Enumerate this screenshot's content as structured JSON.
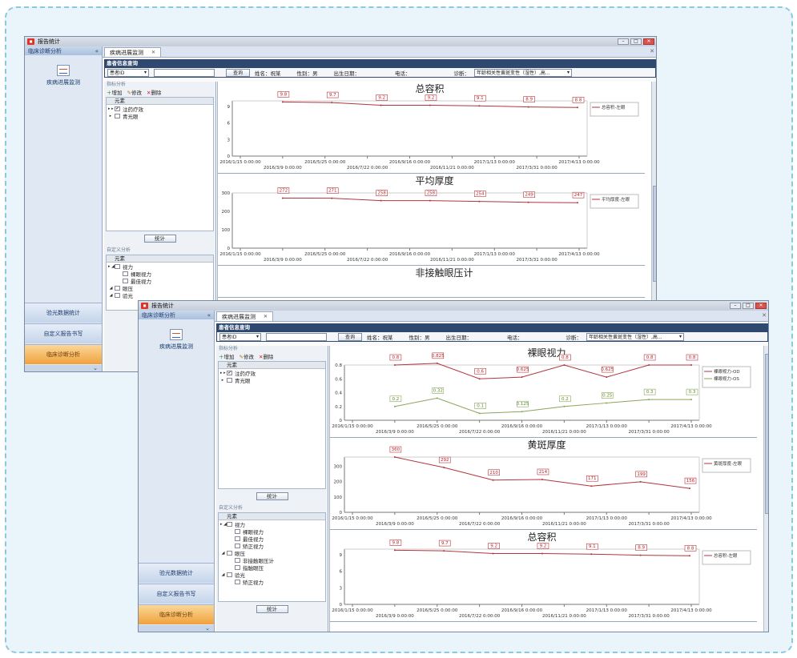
{
  "window": {
    "title": "报告统计",
    "minimize": "–",
    "maximize": "□",
    "close": "✕"
  },
  "nav": {
    "header": "临床诊断分析",
    "collapse": "«",
    "item": "疾病进展监测",
    "buttons": [
      "验光数据统计",
      "自定义报告书写",
      "临床诊断分析"
    ],
    "footer": "⌄"
  },
  "tab": {
    "label": "疾病进展监测",
    "close": "✕"
  },
  "patient": {
    "section_title": "患者信息查询",
    "id_select": "患者ID",
    "id_value": "",
    "query_button": "查询",
    "name": "姓名：祝某",
    "gender": "性别：男",
    "birth": "出生日期：",
    "phone": "电话：",
    "diagnosis_label": "诊断：",
    "diagnosis_value": "年龄相关性黄斑变性（湿性）,高..."
  },
  "left_panel": {
    "group_title": "指标分析",
    "toolbar": [
      "增加",
      "修改",
      "删除"
    ],
    "column": "元素",
    "indicators": [
      {
        "label": "注药疗效",
        "checked": true
      },
      {
        "label": "青光眼",
        "checked": false
      }
    ],
    "stat_button": "统计",
    "custom_title": "自定义分析",
    "custom_tree": [
      {
        "label": "视力",
        "level": 0,
        "arrow": "◢"
      },
      {
        "label": "裸眼视力",
        "level": 1
      },
      {
        "label": "最佳视力",
        "level": 1
      },
      {
        "label": "矫正视力",
        "level": 1
      },
      {
        "label": "眼压",
        "level": 0,
        "arrow": "◢"
      },
      {
        "label": "非接触眼压计",
        "level": 1
      },
      {
        "label": "指触眼压",
        "level": 1
      },
      {
        "label": "验光",
        "level": 0,
        "arrow": "◢"
      },
      {
        "label": "矫正视力",
        "level": 1
      }
    ],
    "custom_tree_top": [
      {
        "label": "视力",
        "level": 0,
        "arrow": "◢"
      },
      {
        "label": "裸眼视力",
        "level": 1
      },
      {
        "label": "最佳视力",
        "level": 1
      },
      {
        "label": "眼压",
        "level": 0,
        "arrow": "◢"
      },
      {
        "label": "验光",
        "level": 0,
        "arrow": "◢"
      }
    ]
  },
  "colors": {
    "series_red": "#b2363c",
    "series_green": "#8aa45a",
    "nav_active": "#f0a13b",
    "header_blue": "#2e4870"
  },
  "x_ticks_top": [
    "2016/1/15 0:00:00",
    "2016/5/25 0:00:00",
    "2016/9/16 0:00:00",
    "2017/1/13 0:00:00",
    "2017/4/13 0:00:00"
  ],
  "x_ticks_bottom": [
    "2016/3/9 0:00:00",
    "2016/7/22 0:00:00",
    "2016/11/21 0:00:00",
    "2017/3/31 0:00:00"
  ],
  "chart_data": [
    {
      "type": "line",
      "title": "总容积",
      "x": [
        "2016/3/9",
        "2016/5/25",
        "2016/7/22",
        "2016/9/16",
        "2016/11/21",
        "2017/1/13",
        "2017/3/31"
      ],
      "series": [
        {
          "name": "总容积-左眼",
          "values": [
            9.8,
            9.7,
            9.2,
            9.2,
            9.1,
            8.9,
            8.8
          ]
        }
      ],
      "ylim": [
        0,
        10
      ],
      "yticks": [
        "0",
        "3",
        "6",
        "9"
      ]
    },
    {
      "type": "line",
      "title": "平均厚度",
      "x": [
        "2016/3/9",
        "2016/5/25",
        "2016/7/22",
        "2016/9/16",
        "2016/11/21",
        "2017/1/13",
        "2017/3/31"
      ],
      "series": [
        {
          "name": "平均厚度-左眼",
          "values": [
            272,
            271,
            258,
            258,
            254,
            249,
            247
          ]
        }
      ],
      "ylim": [
        0,
        300
      ],
      "yticks": [
        "0",
        "100",
        "200",
        "300"
      ]
    },
    {
      "type": "line",
      "title": "非接触眼压计",
      "x": [],
      "series": [],
      "ylim": [
        0,
        20
      ],
      "yticks": []
    },
    {
      "type": "line",
      "title": "裸眼视力",
      "x": [
        "2016/3/9",
        "2016/5/25",
        "2016/7/22",
        "2016/9/16",
        "2016/11/21",
        "2017/1/13",
        "2017/3/31",
        "2017/4/13"
      ],
      "series": [
        {
          "name": "裸眼视力-OD",
          "values": [
            0.8,
            0.825,
            0.6,
            0.625,
            0.8,
            0.625,
            0.8,
            0.8
          ]
        },
        {
          "name": "裸眼视力-OS",
          "values": [
            0.2,
            0.32,
            0.1,
            0.125,
            0.2,
            0.25,
            0.3,
            0.3
          ]
        }
      ],
      "ylim": [
        0,
        0.8
      ],
      "yticks": [
        "0",
        "0.2",
        "0.4",
        "0.6",
        "0.8"
      ]
    },
    {
      "type": "line",
      "title": "黄斑厚度",
      "x": [
        "2016/3/9",
        "2016/5/25",
        "2016/7/22",
        "2016/9/16",
        "2016/11/21",
        "2017/1/13",
        "2017/3/31"
      ],
      "series": [
        {
          "name": "黄斑厚度-左眼",
          "values": [
            360,
            292,
            210,
            214,
            171,
            199,
            156
          ]
        }
      ],
      "ylim": [
        0,
        360
      ],
      "yticks": [
        "0",
        "100",
        "200",
        "300"
      ]
    },
    {
      "type": "line",
      "title": "总容积",
      "x": [
        "2016/3/9",
        "2016/5/25",
        "2016/7/22",
        "2016/9/16",
        "2016/11/21",
        "2017/1/13",
        "2017/3/31"
      ],
      "series": [
        {
          "name": "总容积-左眼",
          "values": [
            9.8,
            9.7,
            9.2,
            9.2,
            9.1,
            8.9,
            8.8
          ]
        }
      ],
      "ylim": [
        0,
        10
      ],
      "yticks": [
        "0",
        "3",
        "6",
        "9"
      ]
    }
  ]
}
